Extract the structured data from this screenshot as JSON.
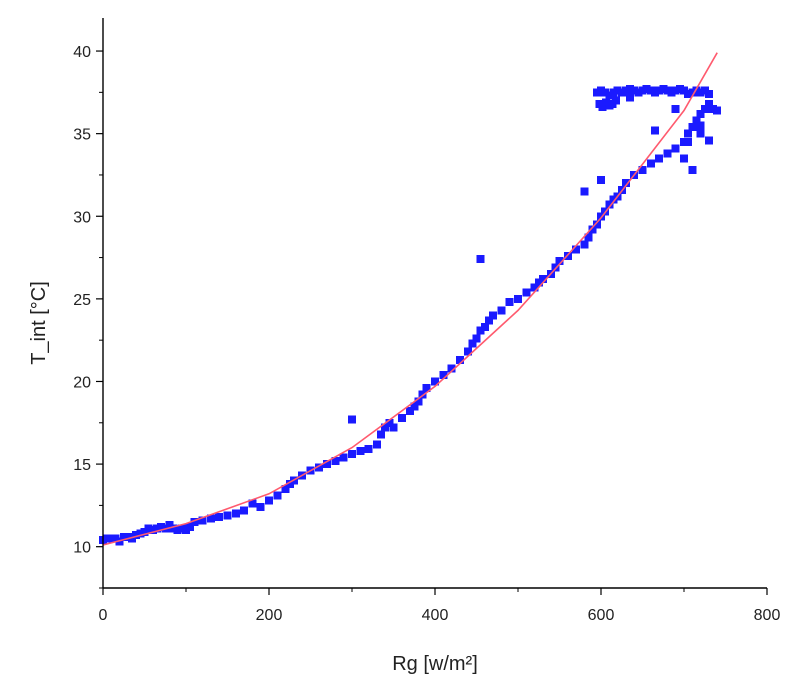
{
  "chart_data": {
    "type": "scatter",
    "title": "",
    "xlabel": "Rg [w/m²]",
    "ylabel": "T_int [°C]",
    "xlim": [
      0,
      800
    ],
    "ylim": [
      7.5,
      42
    ],
    "x_ticks": [
      0,
      200,
      400,
      600,
      800
    ],
    "y_ticks": [
      10,
      15,
      20,
      25,
      30,
      35,
      40
    ],
    "grid": false,
    "legend": "none",
    "colors": {
      "points": "#1a1aff",
      "fit": "#ff5a6e",
      "axis": "#000000"
    },
    "series": [
      {
        "kind": "points",
        "x": [
          0,
          5,
          10,
          15,
          20,
          25,
          30,
          35,
          40,
          45,
          50,
          55,
          60,
          65,
          70,
          75,
          80,
          85,
          90,
          95,
          100,
          105,
          110,
          120,
          130,
          140,
          150,
          160,
          170,
          180,
          190,
          200,
          210,
          220,
          225,
          230,
          240,
          250,
          260,
          270,
          280,
          290,
          300,
          310,
          320,
          330,
          335,
          340,
          345,
          350,
          360,
          370,
          375,
          380,
          385,
          390,
          400,
          410,
          420,
          430,
          440,
          445,
          450,
          455,
          460,
          465,
          470,
          480,
          490,
          500,
          510,
          520,
          525,
          530,
          540,
          545,
          550,
          560,
          570,
          580,
          585,
          590,
          595,
          600,
          605,
          610,
          615,
          620,
          625,
          630,
          640,
          650,
          660,
          670,
          680,
          690,
          700,
          705,
          710,
          715,
          720,
          725,
          730,
          300,
          455,
          580,
          600,
          690,
          720,
          595,
          600,
          605,
          610,
          615,
          620,
          625,
          630,
          635,
          640,
          645,
          650,
          655,
          660,
          665,
          670,
          675,
          680,
          685,
          690,
          695,
          700,
          705,
          710,
          715,
          720,
          725,
          730,
          598,
          602,
          606,
          610,
          614,
          618,
          635,
          665,
          705,
          735,
          700,
          710,
          720,
          730,
          740
        ],
        "y": [
          10.4,
          10.5,
          10.5,
          10.5,
          10.3,
          10.6,
          10.6,
          10.5,
          10.7,
          10.8,
          10.9,
          11.1,
          11.0,
          11.1,
          11.2,
          11.1,
          11.3,
          11.1,
          11.0,
          11.1,
          11.0,
          11.2,
          11.5,
          11.6,
          11.7,
          11.8,
          11.9,
          12.0,
          12.2,
          12.6,
          12.4,
          12.8,
          13.1,
          13.5,
          13.8,
          14.0,
          14.3,
          14.6,
          14.8,
          15.0,
          15.2,
          15.4,
          15.6,
          15.8,
          15.9,
          16.2,
          16.8,
          17.2,
          17.5,
          17.2,
          17.8,
          18.2,
          18.5,
          18.8,
          19.2,
          19.6,
          20.0,
          20.4,
          20.8,
          21.3,
          21.8,
          22.3,
          22.6,
          23.1,
          23.3,
          23.7,
          24.0,
          24.3,
          24.8,
          25.0,
          25.4,
          25.7,
          26.0,
          26.2,
          26.5,
          26.9,
          27.3,
          27.6,
          28.0,
          28.3,
          28.7,
          29.2,
          29.5,
          30.0,
          30.3,
          30.7,
          31.0,
          31.2,
          31.6,
          32.0,
          32.5,
          32.8,
          33.2,
          33.5,
          33.8,
          34.1,
          34.5,
          35.0,
          35.4,
          35.8,
          36.2,
          36.5,
          36.8,
          17.7,
          27.4,
          31.5,
          32.2,
          36.5,
          35.5,
          37.5,
          37.6,
          37.5,
          37.3,
          37.5,
          37.6,
          37.5,
          37.6,
          37.7,
          37.6,
          37.5,
          37.6,
          37.7,
          37.6,
          37.5,
          37.6,
          37.7,
          37.6,
          37.5,
          37.6,
          37.7,
          37.6,
          37.4,
          37.5,
          37.6,
          37.5,
          37.6,
          37.4,
          36.8,
          36.6,
          36.9,
          36.7,
          36.8,
          37.0,
          37.2,
          35.2,
          34.5,
          36.5,
          33.5,
          32.8,
          35.0,
          34.6,
          36.4
        ]
      },
      {
        "kind": "fit",
        "x": [
          0,
          100,
          200,
          300,
          400,
          500,
          600,
          700,
          740
        ],
        "y": [
          10.1,
          11.4,
          13.2,
          16.0,
          19.7,
          24.3,
          29.9,
          36.4,
          39.9
        ]
      }
    ]
  }
}
